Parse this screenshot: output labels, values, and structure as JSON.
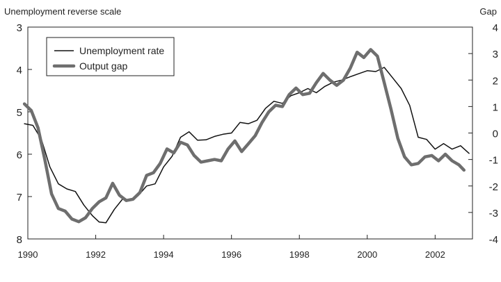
{
  "chart_data": {
    "type": "line",
    "title": "",
    "xlabel": "",
    "y_left_label": "Unemployment reverse scale",
    "y_right_label": "Gap",
    "y_left_reversed": true,
    "y_left_range": [
      3,
      8
    ],
    "y_right_range": [
      -4,
      4
    ],
    "x_range": [
      1990,
      2003.1
    ],
    "x_ticks": [
      "1990",
      "1992",
      "1994",
      "1996",
      "1998",
      "2000",
      "2002"
    ],
    "y_left_ticks": [
      "3",
      "4",
      "5",
      "6",
      "7",
      "8"
    ],
    "y_right_ticks": [
      "4",
      "3",
      "2",
      "1",
      "0",
      "-1",
      "-2",
      "-3",
      "-4"
    ],
    "legend_position": "top-left",
    "series": [
      {
        "name": "Unemployment rate",
        "axis": "left",
        "color": "#111111",
        "points": [
          [
            1989.9,
            5.28
          ],
          [
            1990.15,
            5.32
          ],
          [
            1990.4,
            5.65
          ],
          [
            1990.65,
            6.3
          ],
          [
            1990.9,
            6.7
          ],
          [
            1991.15,
            6.82
          ],
          [
            1991.4,
            6.88
          ],
          [
            1991.65,
            7.2
          ],
          [
            1991.9,
            7.45
          ],
          [
            1992.1,
            7.6
          ],
          [
            1992.3,
            7.62
          ],
          [
            1992.55,
            7.3
          ],
          [
            1992.8,
            7.05
          ],
          [
            1993.0,
            7.1
          ],
          [
            1993.25,
            6.98
          ],
          [
            1993.5,
            6.75
          ],
          [
            1993.75,
            6.7
          ],
          [
            1994.0,
            6.3
          ],
          [
            1994.25,
            6.05
          ],
          [
            1994.5,
            5.6
          ],
          [
            1994.75,
            5.47
          ],
          [
            1995.0,
            5.67
          ],
          [
            1995.25,
            5.66
          ],
          [
            1995.5,
            5.58
          ],
          [
            1995.75,
            5.53
          ],
          [
            1996.0,
            5.5
          ],
          [
            1996.25,
            5.25
          ],
          [
            1996.5,
            5.28
          ],
          [
            1996.75,
            5.2
          ],
          [
            1997.0,
            4.92
          ],
          [
            1997.25,
            4.75
          ],
          [
            1997.5,
            4.8
          ],
          [
            1997.75,
            4.62
          ],
          [
            1998.0,
            4.55
          ],
          [
            1998.25,
            4.45
          ],
          [
            1998.5,
            4.55
          ],
          [
            1998.75,
            4.4
          ],
          [
            1999.0,
            4.3
          ],
          [
            1999.25,
            4.25
          ],
          [
            1999.5,
            4.17
          ],
          [
            1999.75,
            4.1
          ],
          [
            2000.0,
            4.03
          ],
          [
            2000.25,
            4.05
          ],
          [
            2000.5,
            3.95
          ],
          [
            2000.75,
            4.2
          ],
          [
            2001.0,
            4.45
          ],
          [
            2001.25,
            4.85
          ],
          [
            2001.5,
            5.6
          ],
          [
            2001.75,
            5.65
          ],
          [
            2002.0,
            5.88
          ],
          [
            2002.25,
            5.75
          ],
          [
            2002.5,
            5.88
          ],
          [
            2002.75,
            5.8
          ],
          [
            2003.0,
            5.98
          ]
        ]
      },
      {
        "name": "Output gap",
        "axis": "right",
        "color": "#6e6e6e",
        "points": [
          [
            1989.9,
            1.1
          ],
          [
            1990.1,
            0.85
          ],
          [
            1990.3,
            0.2
          ],
          [
            1990.5,
            -1.0
          ],
          [
            1990.7,
            -2.3
          ],
          [
            1990.9,
            -2.85
          ],
          [
            1991.1,
            -2.95
          ],
          [
            1991.3,
            -3.25
          ],
          [
            1991.5,
            -3.35
          ],
          [
            1991.7,
            -3.2
          ],
          [
            1991.9,
            -2.85
          ],
          [
            1992.1,
            -2.6
          ],
          [
            1992.3,
            -2.45
          ],
          [
            1992.5,
            -1.9
          ],
          [
            1992.7,
            -2.35
          ],
          [
            1992.9,
            -2.55
          ],
          [
            1993.1,
            -2.5
          ],
          [
            1993.3,
            -2.25
          ],
          [
            1993.5,
            -1.6
          ],
          [
            1993.7,
            -1.5
          ],
          [
            1993.9,
            -1.15
          ],
          [
            1994.1,
            -0.6
          ],
          [
            1994.3,
            -0.75
          ],
          [
            1994.5,
            -0.35
          ],
          [
            1994.7,
            -0.45
          ],
          [
            1994.9,
            -0.85
          ],
          [
            1995.1,
            -1.1
          ],
          [
            1995.3,
            -1.05
          ],
          [
            1995.5,
            -1.0
          ],
          [
            1995.7,
            -1.05
          ],
          [
            1995.9,
            -0.6
          ],
          [
            1996.1,
            -0.3
          ],
          [
            1996.3,
            -0.7
          ],
          [
            1996.5,
            -0.4
          ],
          [
            1996.7,
            -0.1
          ],
          [
            1996.9,
            0.4
          ],
          [
            1997.1,
            0.8
          ],
          [
            1997.3,
            1.05
          ],
          [
            1997.5,
            1.0
          ],
          [
            1997.7,
            1.45
          ],
          [
            1997.9,
            1.7
          ],
          [
            1998.1,
            1.45
          ],
          [
            1998.3,
            1.5
          ],
          [
            1998.5,
            1.9
          ],
          [
            1998.7,
            2.25
          ],
          [
            1998.9,
            2.0
          ],
          [
            1999.1,
            1.8
          ],
          [
            1999.3,
            2.0
          ],
          [
            1999.5,
            2.45
          ],
          [
            1999.7,
            3.05
          ],
          [
            1999.9,
            2.85
          ],
          [
            2000.1,
            3.15
          ],
          [
            2000.3,
            2.9
          ],
          [
            2000.5,
            1.9
          ],
          [
            2000.7,
            0.9
          ],
          [
            2000.9,
            -0.2
          ],
          [
            2001.1,
            -0.9
          ],
          [
            2001.3,
            -1.2
          ],
          [
            2001.5,
            -1.15
          ],
          [
            2001.7,
            -0.9
          ],
          [
            2001.9,
            -0.85
          ],
          [
            2002.1,
            -1.05
          ],
          [
            2002.3,
            -0.8
          ],
          [
            2002.5,
            -1.05
          ],
          [
            2002.7,
            -1.2
          ],
          [
            2002.85,
            -1.4
          ]
        ]
      }
    ]
  }
}
